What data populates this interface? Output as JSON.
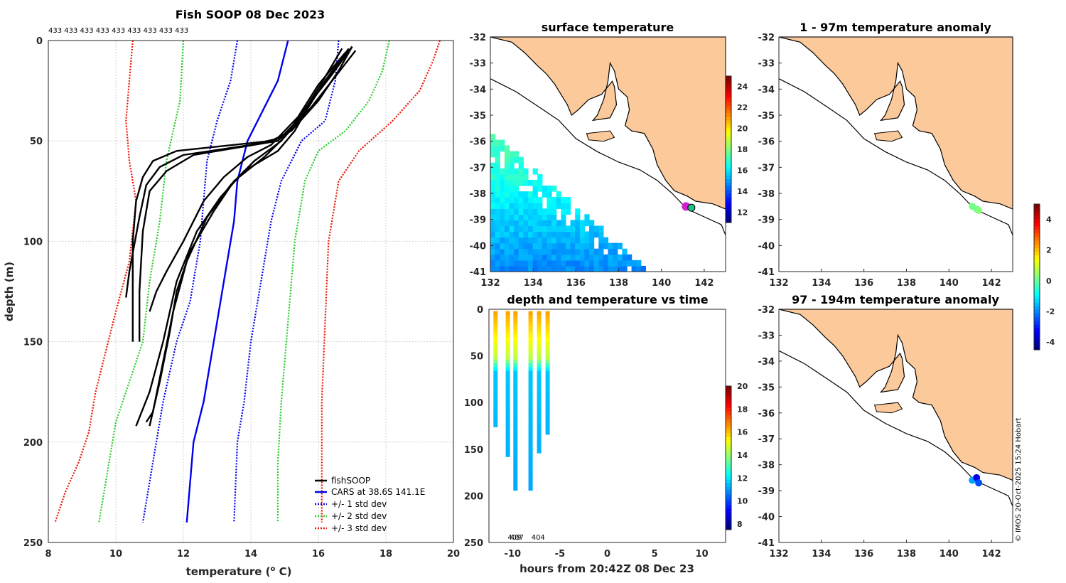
{
  "colors": {
    "profile": "#000000",
    "cars": "#0000ee",
    "std1": "#0000ee",
    "std2": "#22cc22",
    "std3": "#ee1100",
    "land": "#fbc99a",
    "grid": "#d0d0d0"
  },
  "chart_data": [
    {
      "id": "profile",
      "type": "line",
      "title": "Fish SOOP 08 Dec 2023",
      "xlabel": "temperature (",
      "xlabel_sup": "o",
      "xlabel_end": " C)",
      "ylabel": "depth (m)",
      "xlim": [
        8,
        20
      ],
      "ylim": [
        250,
        0
      ],
      "xticks": [
        "8",
        "10",
        "12",
        "14",
        "16",
        "18",
        "20"
      ],
      "yticks": [
        "0",
        "50",
        "100",
        "150",
        "200",
        "250"
      ],
      "top_labels": "433 433 433 433 433 433 433 433 433",
      "legend": [
        "fishSOOP",
        "CARS at 38.6S 141.1E",
        "+/- 1 std dev",
        "+/- 2 std dev",
        "+/- 3 std dev"
      ],
      "series": [
        {
          "name": "CARS at 38.6S 141.1E",
          "points": [
            [
              15.1,
              0
            ],
            [
              14.8,
              20
            ],
            [
              14.2,
              40
            ],
            [
              13.9,
              50
            ],
            [
              13.6,
              70
            ],
            [
              13.5,
              90
            ],
            [
              13.2,
              120
            ],
            [
              12.9,
              150
            ],
            [
              12.6,
              180
            ],
            [
              12.3,
              200
            ],
            [
              12.1,
              240
            ]
          ]
        },
        {
          "name": "+1 std dev",
          "points": [
            [
              16.6,
              0
            ],
            [
              16.5,
              20
            ],
            [
              16.2,
              40
            ],
            [
              15.5,
              50
            ],
            [
              14.9,
              70
            ],
            [
              14.6,
              90
            ],
            [
              14.3,
              120
            ],
            [
              14.0,
              150
            ],
            [
              13.8,
              180
            ],
            [
              13.6,
              200
            ],
            [
              13.5,
              240
            ]
          ]
        },
        {
          "name": "-1 std dev",
          "points": [
            [
              13.6,
              0
            ],
            [
              13.4,
              20
            ],
            [
              13.0,
              40
            ],
            [
              12.7,
              60
            ],
            [
              12.6,
              80
            ],
            [
              12.5,
              100
            ],
            [
              12.2,
              130
            ],
            [
              11.8,
              150
            ],
            [
              11.4,
              180
            ],
            [
              11.1,
              210
            ],
            [
              10.8,
              240
            ]
          ]
        },
        {
          "name": "+2 std dev",
          "points": [
            [
              18.1,
              0
            ],
            [
              17.9,
              15
            ],
            [
              17.5,
              30
            ],
            [
              16.8,
              45
            ],
            [
              16.0,
              55
            ],
            [
              15.6,
              70
            ],
            [
              15.3,
              100
            ],
            [
              15.1,
              140
            ],
            [
              14.9,
              180
            ],
            [
              14.8,
              210
            ],
            [
              14.8,
              240
            ]
          ]
        },
        {
          "name": "-2 std dev",
          "points": [
            [
              12.0,
              0
            ],
            [
              11.9,
              30
            ],
            [
              11.7,
              45
            ],
            [
              11.5,
              60
            ],
            [
              11.3,
              90
            ],
            [
              11.0,
              120
            ],
            [
              10.8,
              150
            ],
            [
              10.4,
              170
            ],
            [
              10.0,
              190
            ],
            [
              9.8,
              210
            ],
            [
              9.6,
              230
            ],
            [
              9.5,
              240
            ]
          ]
        },
        {
          "name": "+3 std dev",
          "points": [
            [
              19.6,
              0
            ],
            [
              19.4,
              10
            ],
            [
              19.0,
              25
            ],
            [
              18.2,
              40
            ],
            [
              17.2,
              55
            ],
            [
              16.6,
              70
            ],
            [
              16.3,
              100
            ],
            [
              16.2,
              140
            ],
            [
              16.1,
              180
            ],
            [
              16.1,
              210
            ],
            [
              16.1,
              240
            ]
          ]
        },
        {
          "name": "-3 std dev",
          "points": [
            [
              10.5,
              0
            ],
            [
              10.4,
              20
            ],
            [
              10.3,
              40
            ],
            [
              10.4,
              60
            ],
            [
              10.6,
              80
            ],
            [
              10.4,
              110
            ],
            [
              10.0,
              135
            ],
            [
              9.7,
              155
            ],
            [
              9.4,
              175
            ],
            [
              9.2,
              195
            ],
            [
              8.9,
              210
            ],
            [
              8.5,
              225
            ],
            [
              8.2,
              240
            ]
          ]
        },
        {
          "name": "fishSOOP a",
          "points": [
            [
              17.0,
              3
            ],
            [
              16.6,
              15
            ],
            [
              16.0,
              30
            ],
            [
              15.2,
              45
            ],
            [
              14.6,
              50
            ],
            [
              11.8,
              55
            ],
            [
              11.1,
              60
            ],
            [
              10.8,
              68
            ],
            [
              10.6,
              80
            ],
            [
              10.5,
              100
            ],
            [
              10.5,
              130
            ],
            [
              10.5,
              150
            ]
          ]
        },
        {
          "name": "fishSOOP b",
          "points": [
            [
              17.1,
              5
            ],
            [
              16.5,
              18
            ],
            [
              15.8,
              33
            ],
            [
              15.0,
              48
            ],
            [
              14.0,
              52
            ],
            [
              12.0,
              57
            ],
            [
              11.3,
              63
            ],
            [
              10.9,
              72
            ],
            [
              10.7,
              88
            ],
            [
              10.4,
              115
            ],
            [
              10.3,
              128
            ]
          ]
        },
        {
          "name": "fishSOOP c",
          "points": [
            [
              16.9,
              4
            ],
            [
              16.2,
              20
            ],
            [
              15.6,
              36
            ],
            [
              14.8,
              50
            ],
            [
              12.3,
              57
            ],
            [
              11.5,
              65
            ],
            [
              11.0,
              75
            ],
            [
              10.8,
              95
            ],
            [
              10.7,
              125
            ],
            [
              10.7,
              150
            ]
          ]
        },
        {
          "name": "fishSOOP d",
          "points": [
            [
              16.8,
              6
            ],
            [
              16.0,
              22
            ],
            [
              15.4,
              38
            ],
            [
              14.6,
              52
            ],
            [
              13.9,
              58
            ],
            [
              13.2,
              68
            ],
            [
              12.6,
              80
            ],
            [
              12.0,
              100
            ],
            [
              11.5,
              115
            ],
            [
              11.2,
              125
            ],
            [
              11.0,
              135
            ]
          ]
        },
        {
          "name": "fishSOOP e",
          "points": [
            [
              17.0,
              3
            ],
            [
              16.4,
              17
            ],
            [
              15.8,
              30
            ],
            [
              15.3,
              45
            ],
            [
              14.8,
              55
            ],
            [
              13.8,
              65
            ],
            [
              13.1,
              78
            ],
            [
              12.4,
              95
            ],
            [
              11.8,
              120
            ],
            [
              11.4,
              150
            ],
            [
              11.0,
              175
            ],
            [
              10.6,
              192
            ]
          ]
        },
        {
          "name": "fishSOOP f",
          "points": [
            [
              16.9,
              5
            ],
            [
              16.3,
              19
            ],
            [
              15.6,
              34
            ],
            [
              15.0,
              48
            ],
            [
              14.4,
              58
            ],
            [
              13.5,
              70
            ],
            [
              12.9,
              85
            ],
            [
              12.2,
              105
            ],
            [
              11.8,
              125
            ],
            [
              11.6,
              145
            ],
            [
              11.3,
              170
            ],
            [
              11.0,
              192
            ]
          ]
        },
        {
          "name": "fishSOOP g",
          "points": [
            [
              16.7,
              4
            ],
            [
              16.1,
              21
            ],
            [
              15.5,
              37
            ],
            [
              14.9,
              50
            ],
            [
              14.1,
              60
            ],
            [
              13.4,
              72
            ],
            [
              12.7,
              88
            ],
            [
              12.1,
              110
            ],
            [
              11.7,
              135
            ],
            [
              11.4,
              160
            ],
            [
              11.1,
              185
            ],
            [
              10.9,
              190
            ]
          ]
        }
      ]
    },
    {
      "id": "sst",
      "type": "heatmap",
      "title": "surface temperature",
      "xticks": [
        "132",
        "134",
        "136",
        "138",
        "140",
        "142"
      ],
      "yticks": [
        "-32",
        "-33",
        "-34",
        "-35",
        "-36",
        "-37",
        "-38",
        "-39",
        "-40",
        "-41"
      ],
      "xlim": [
        132,
        143
      ],
      "ylim": [
        -41,
        -32
      ],
      "colorbar_ticks": [
        "12",
        "14",
        "16",
        "18",
        "20",
        "22",
        "24"
      ],
      "colorbar_range": [
        11,
        25
      ]
    },
    {
      "id": "depthtime",
      "type": "scatter",
      "title": "depth and temperature vs time",
      "xlabel": "hours from 20:42Z 08 Dec 23",
      "xlim": [
        -12.5,
        12.5
      ],
      "ylim": [
        250,
        0
      ],
      "xticks": [
        "-10",
        "-5",
        "0",
        "5",
        "10"
      ],
      "yticks": [
        "0",
        "50",
        "100",
        "150",
        "200",
        "250"
      ],
      "colorbar_ticks": [
        "8",
        "10",
        "12",
        "14",
        "16",
        "18",
        "20"
      ],
      "colorbar_range": [
        7.5,
        20
      ],
      "bottom_labels": [
        "409",
        "407",
        "404"
      ],
      "casts": [
        {
          "t": -11.8,
          "maxdepth": 125
        },
        {
          "t": -10.5,
          "maxdepth": 155
        },
        {
          "t": -9.7,
          "maxdepth": 193
        },
        {
          "t": -8.1,
          "maxdepth": 193
        },
        {
          "t": -7.2,
          "maxdepth": 153
        },
        {
          "t": -6.3,
          "maxdepth": 130
        }
      ]
    },
    {
      "id": "anom1",
      "type": "scatter",
      "title": "1 - 97m temperature anomaly",
      "xticks": [
        "132",
        "134",
        "136",
        "138",
        "140",
        "142"
      ],
      "yticks": [
        "-32",
        "-33",
        "-34",
        "-35",
        "-36",
        "-37",
        "-38",
        "-39",
        "-40",
        "-41"
      ],
      "points": [
        [
          141.1,
          -38.5,
          0.2
        ],
        [
          141.3,
          -38.6,
          0.1
        ],
        [
          141.4,
          -38.65,
          0.3
        ]
      ]
    },
    {
      "id": "anom2",
      "type": "scatter",
      "title": "97 - 194m temperature anomaly",
      "xticks": [
        "132",
        "134",
        "136",
        "138",
        "140",
        "142"
      ],
      "yticks": [
        "-32",
        "-33",
        "-34",
        "-35",
        "-36",
        "-37",
        "-38",
        "-39",
        "-40",
        "-41"
      ],
      "points": [
        [
          141.1,
          -38.6,
          -1.8
        ],
        [
          141.3,
          -38.5,
          -3.5
        ],
        [
          141.4,
          -38.7,
          -2.6
        ]
      ],
      "colorbar_ticks": [
        "4",
        "2",
        "0",
        "-2",
        "-4"
      ]
    }
  ],
  "credit": "© IMOS 20-Oct-2025 15:24 Hobart"
}
